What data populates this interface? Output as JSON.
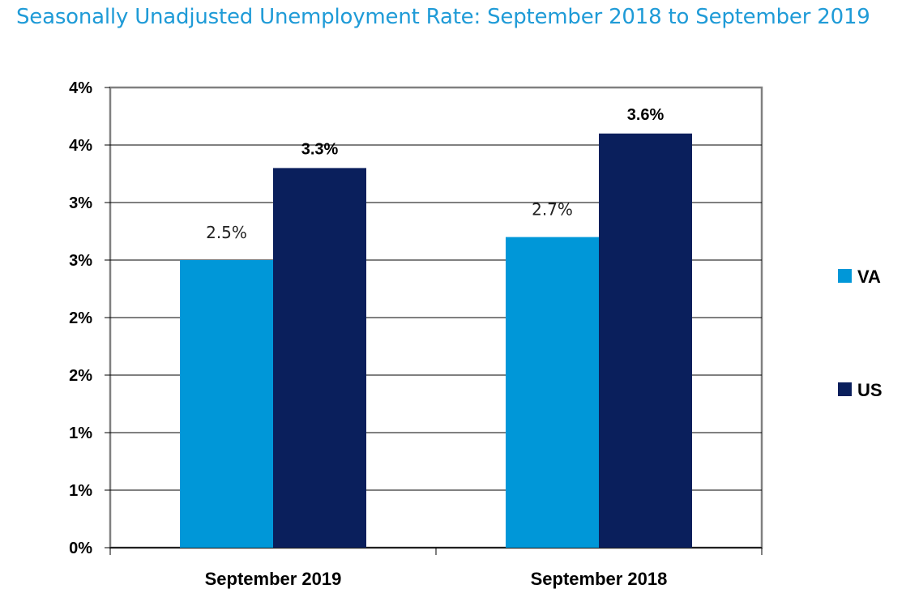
{
  "chart_data": {
    "type": "bar",
    "title": "Seasonally Unadjusted Unemployment Rate:  September 2018 to September 2019",
    "categories": [
      "September 2019",
      "September 2018"
    ],
    "series": [
      {
        "name": "VA",
        "values": [
          2.5,
          2.7
        ],
        "labels": [
          "2.5%",
          "2.7%"
        ],
        "color": "#0097d8"
      },
      {
        "name": "US",
        "values": [
          3.3,
          3.6
        ],
        "labels": [
          "3.3%",
          "3.6%"
        ],
        "color": "#0a1f5c"
      }
    ],
    "ylim": [
      0,
      4
    ],
    "yticks": [
      0,
      0.5,
      1,
      1.5,
      2,
      2.5,
      3,
      3.5,
      4
    ],
    "ytick_labels": [
      "0%",
      "1%",
      "1%",
      "2%",
      "2%",
      "3%",
      "3%",
      "4%",
      "4%"
    ],
    "xlabel": "",
    "ylabel": "",
    "grid": true,
    "legend_position": "right"
  }
}
